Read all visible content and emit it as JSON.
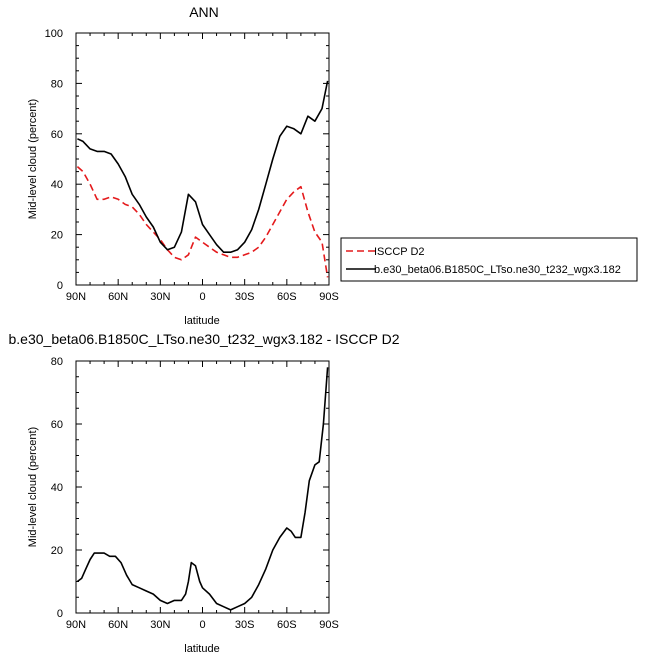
{
  "chart_data": [
    {
      "type": "line",
      "title": "ANN",
      "xlabel": "latitude",
      "ylabel": "Mid-level cloud (percent)",
      "xlim": [
        90,
        -90
      ],
      "ylim": [
        0,
        100
      ],
      "xticks": [
        90,
        60,
        30,
        0,
        -30,
        -60,
        -90
      ],
      "xtick_labels": [
        "90N",
        "60N",
        "30N",
        "0",
        "30S",
        "60S",
        "90S"
      ],
      "yticks": [
        0,
        20,
        40,
        60,
        80,
        100
      ],
      "ytick_labels": [
        "0",
        "20",
        "40",
        "60",
        "80",
        "100"
      ],
      "legend": "right",
      "series": [
        {
          "name": "ISCCP D2",
          "color": "#e41a1c",
          "dash": "dashed",
          "x": [
            89,
            85,
            80,
            75,
            70,
            65,
            60,
            55,
            50,
            45,
            40,
            35,
            30,
            25,
            20,
            15,
            10,
            5,
            0,
            -5,
            -10,
            -15,
            -20,
            -25,
            -30,
            -35,
            -40,
            -45,
            -50,
            -55,
            -60,
            -65,
            -70,
            -75,
            -80,
            -85,
            -89
          ],
          "y": [
            47,
            45,
            40,
            34,
            34,
            35,
            34,
            32,
            31,
            28,
            24,
            21,
            18,
            14,
            11,
            10,
            12,
            19,
            17,
            15,
            13,
            12,
            11,
            11,
            12,
            13,
            15,
            19,
            24,
            29,
            34,
            37,
            39,
            29,
            21,
            17,
            3
          ]
        },
        {
          "name": "b.e30_beta06.B1850C_LTso.ne30_t232_wgx3.182",
          "color": "#000000",
          "dash": "solid",
          "x": [
            89,
            85,
            80,
            75,
            70,
            65,
            60,
            55,
            50,
            45,
            40,
            35,
            30,
            25,
            20,
            15,
            10,
            5,
            0,
            -5,
            -10,
            -15,
            -20,
            -25,
            -30,
            -35,
            -40,
            -45,
            -50,
            -55,
            -60,
            -65,
            -70,
            -75,
            -80,
            -85,
            -89
          ],
          "y": [
            58,
            57,
            54,
            53,
            53,
            52,
            48,
            43,
            36,
            32,
            27,
            23,
            17,
            14,
            15,
            21,
            36,
            33,
            24,
            20,
            16,
            13,
            13,
            14,
            17,
            22,
            30,
            40,
            50,
            59,
            63,
            62,
            60,
            67,
            65,
            70,
            81
          ]
        }
      ]
    },
    {
      "type": "line",
      "title": "b.e30_beta06.B1850C_LTso.ne30_t232_wgx3.182 - ISCCP D2",
      "xlabel": "latitude",
      "ylabel": "Mid-level cloud (percent)",
      "xlim": [
        90,
        -90
      ],
      "ylim": [
        0,
        80
      ],
      "xticks": [
        90,
        60,
        30,
        0,
        -30,
        -60,
        -90
      ],
      "xtick_labels": [
        "90N",
        "60N",
        "30N",
        "0",
        "30S",
        "60S",
        "90S"
      ],
      "yticks": [
        0,
        20,
        40,
        60,
        80
      ],
      "ytick_labels": [
        "0",
        "20",
        "40",
        "60",
        "80"
      ],
      "series": [
        {
          "color": "#000000",
          "dash": "solid",
          "x": [
            89,
            86,
            83,
            80,
            77,
            74,
            70,
            66,
            62,
            58,
            54,
            50,
            45,
            40,
            35,
            30,
            25,
            20,
            15,
            12,
            10,
            8,
            5,
            2,
            0,
            -5,
            -10,
            -15,
            -20,
            -25,
            -30,
            -35,
            -40,
            -45,
            -50,
            -55,
            -60,
            -63,
            -66,
            -70,
            -73,
            -76,
            -80,
            -83,
            -86,
            -89
          ],
          "y": [
            10,
            11,
            14,
            17,
            19,
            19,
            19,
            18,
            18,
            16,
            12,
            9,
            8,
            7,
            6,
            4,
            3,
            4,
            4,
            6,
            10,
            16,
            15,
            10,
            8,
            6,
            3,
            2,
            1,
            2,
            3,
            5,
            9,
            14,
            20,
            24,
            27,
            26,
            24,
            24,
            32,
            42,
            47,
            48,
            60,
            78
          ]
        }
      ]
    }
  ]
}
